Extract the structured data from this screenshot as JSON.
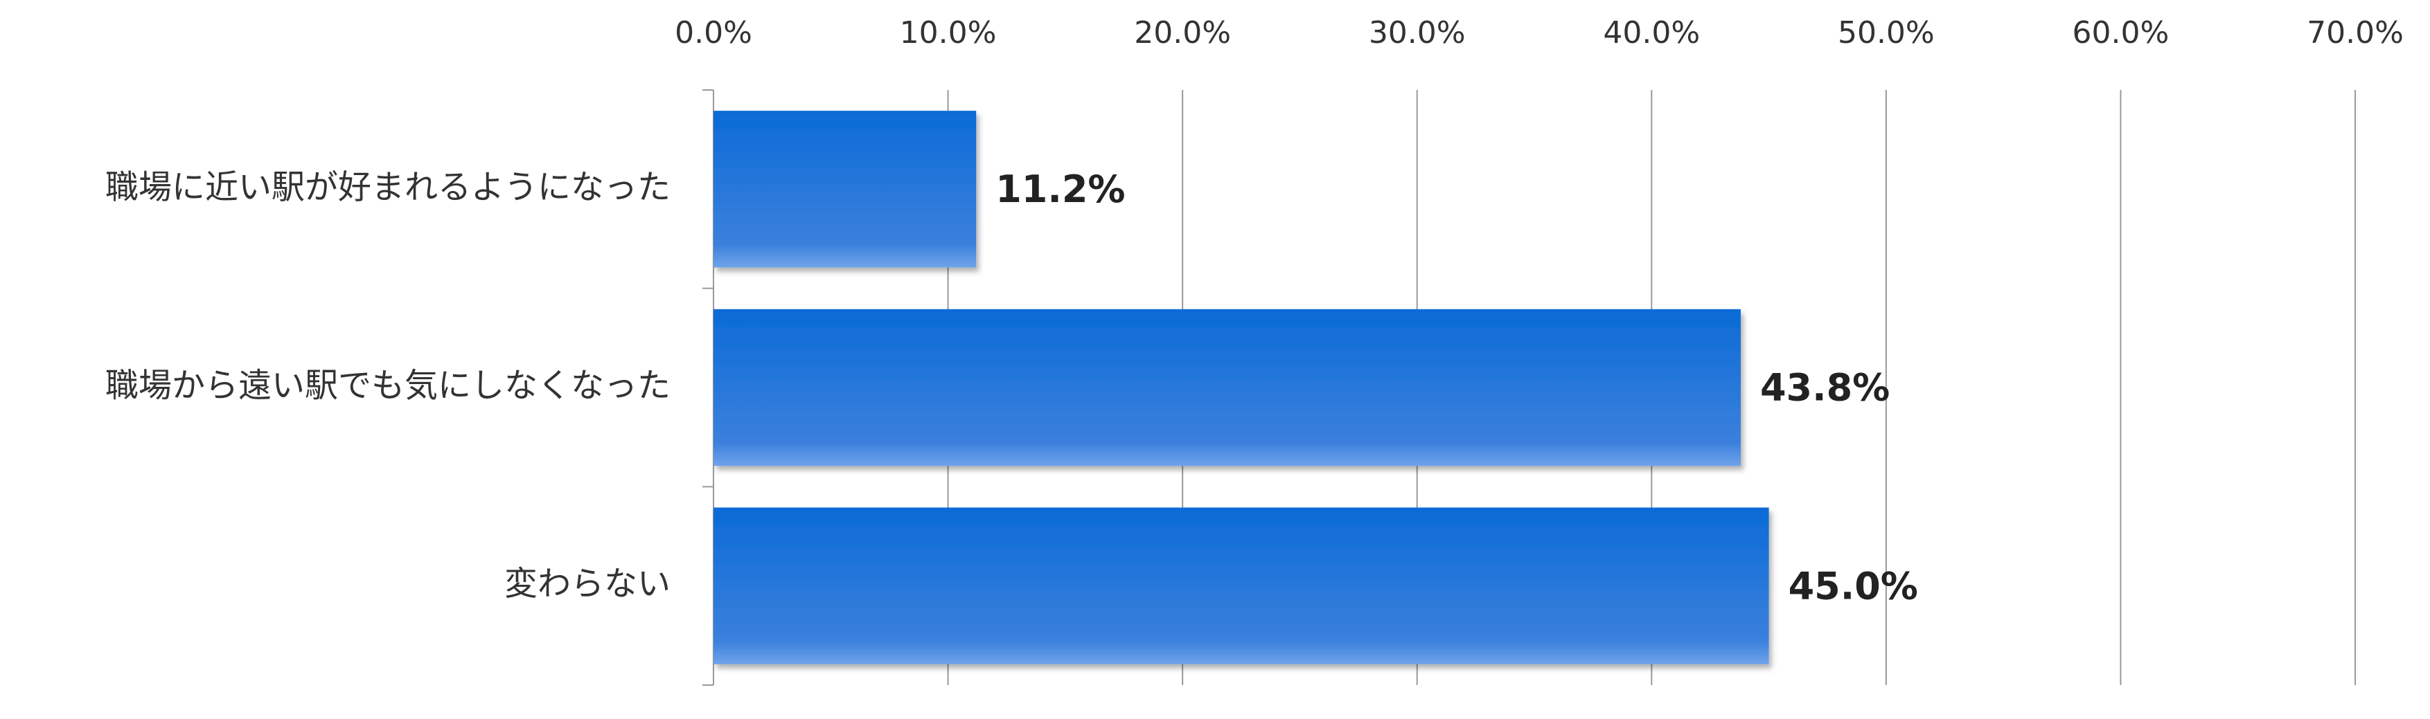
{
  "chart_data": {
    "type": "bar",
    "orientation": "horizontal",
    "categories": [
      "職場に近い駅が好まれるようになった",
      "職場から遠い駅でも気にしなくなった",
      "変わらない"
    ],
    "values": [
      11.2,
      43.8,
      45
    ],
    "value_labels": [
      "11.2%",
      "43.8%",
      "45.0%"
    ],
    "color": "#0b6bd6",
    "xlim": [
      0,
      70
    ],
    "xticks": [
      {
        "value": 0,
        "label": "0.0%"
      },
      {
        "value": 10,
        "label": "10.0%"
      },
      {
        "value": 20,
        "label": "20.0%"
      },
      {
        "value": 30,
        "label": "30.0%"
      },
      {
        "value": 40,
        "label": "40.0%"
      },
      {
        "value": 50,
        "label": "50.0%"
      },
      {
        "value": 60,
        "label": "60.0%"
      },
      {
        "value": 70,
        "label": "70.0%"
      }
    ],
    "grid": true
  }
}
